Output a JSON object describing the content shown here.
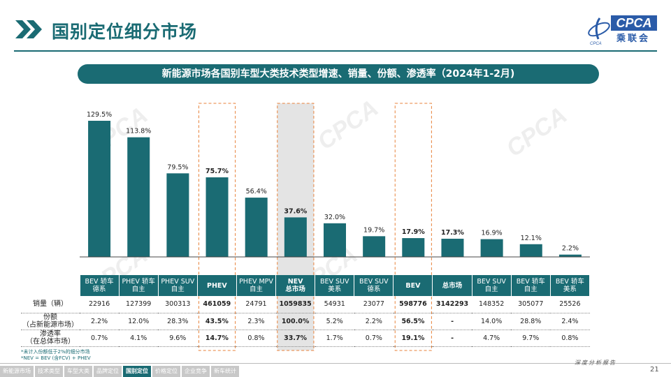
{
  "page_title": "国别定位细分市场",
  "logo": {
    "main": "CPCA",
    "cn": "乘联会",
    "sub": "CPCA"
  },
  "banner": "新能源市场各国别车型大类技术类型增速、销量、份额、渗透率（2024年1-2月)",
  "colors": {
    "teal": "#1a6b73",
    "highlight_box": "#e8823a",
    "highlight_fill": "#d9d9d9"
  },
  "chart_data": {
    "type": "bar",
    "categories": [
      "BEV 轿车 德系",
      "PHEV 轿车 自主",
      "PHEV SUV 自主",
      "PHEV",
      "PHEV MPV 自主",
      "NEV 总市场",
      "BEV SUV 美系",
      "BEV SUV 德系",
      "BEV",
      "总市场",
      "BEV SUV 自主",
      "BEV 轿车 自主",
      "BEV 轿车 美系"
    ],
    "series": [
      {
        "values": [
          129.5,
          113.8,
          79.5,
          75.7,
          56.4,
          37.6,
          32.0,
          19.7,
          17.9,
          17.3,
          16.9,
          12.1,
          2.2
        ]
      }
    ],
    "value_labels": [
      "129.5%",
      "113.8%",
      "79.5%",
      "75.7%",
      "56.4%",
      "37.6%",
      "32.0%",
      "19.7%",
      "17.9%",
      "17.3%",
      "16.9%",
      "12.1%",
      "2.2%"
    ],
    "bold_labels": [
      false,
      false,
      false,
      true,
      false,
      true,
      false,
      false,
      true,
      true,
      false,
      false,
      false
    ],
    "highlight_dashed": [
      3,
      8
    ],
    "highlight_gray": [
      5
    ],
    "ylim": [
      0,
      135
    ],
    "grid": false,
    "xlabel": "",
    "ylabel": ""
  },
  "table": {
    "headers": [
      {
        "l1": "BEV 轿车",
        "l2": "德系",
        "bold": false
      },
      {
        "l1": "PHEV 轿车",
        "l2": "自主",
        "bold": false
      },
      {
        "l1": "PHEV SUV",
        "l2": "自主",
        "bold": false
      },
      {
        "l1": "PHEV",
        "l2": "",
        "bold": true
      },
      {
        "l1": "PHEV MPV",
        "l2": "自主",
        "bold": false
      },
      {
        "l1": "NEV",
        "l2": "总市场",
        "bold": true
      },
      {
        "l1": "BEV SUV",
        "l2": "美系",
        "bold": false
      },
      {
        "l1": "BEV SUV",
        "l2": "德系",
        "bold": false
      },
      {
        "l1": "BEV",
        "l2": "",
        "bold": true
      },
      {
        "l1": "总市场",
        "l2": "",
        "bold": true
      },
      {
        "l1": "BEV SUV",
        "l2": "自主",
        "bold": false
      },
      {
        "l1": "BEV 轿车",
        "l2": "自主",
        "bold": false
      },
      {
        "l1": "BEV 轿车",
        "l2": "美系",
        "bold": false
      }
    ],
    "rows": [
      {
        "label1": "销量（辆）",
        "label2": "",
        "cells": [
          "22916",
          "127399",
          "300313",
          "461059",
          "24791",
          "1059835",
          "54931",
          "23077",
          "598776",
          "3142293",
          "148352",
          "305077",
          "25526"
        ]
      },
      {
        "label1": "份额",
        "label2": "（占新能源市场）",
        "cells": [
          "2.2%",
          "12.0%",
          "28.3%",
          "43.5%",
          "2.3%",
          "100.0%",
          "5.2%",
          "2.2%",
          "56.5%",
          "-",
          "14.0%",
          "28.8%",
          "2.4%"
        ]
      },
      {
        "label1": "渗透率",
        "label2": "（在总体市场）",
        "cells": [
          "0.7%",
          "4.1%",
          "9.6%",
          "14.7%",
          "0.8%",
          "33.7%",
          "1.7%",
          "0.7%",
          "19.1%",
          "-",
          "4.7%",
          "9.7%",
          "0.8%"
        ]
      }
    ],
    "bold_cols": [
      3,
      5,
      8,
      9
    ]
  },
  "notes": [
    "*未计入份额低于2%的细分市场",
    "*NEV = BEV (含FCV) + PHEV"
  ],
  "footer": {
    "tagline": "深度分析报告",
    "page": "21"
  },
  "nav": [
    {
      "label": "新能源市场",
      "active": false
    },
    {
      "label": "技术类型",
      "active": false
    },
    {
      "label": "车型大类",
      "active": false
    },
    {
      "label": "品牌定位",
      "active": false
    },
    {
      "label": "国别定位",
      "active": true
    },
    {
      "label": "价格定位",
      "active": false
    },
    {
      "label": "企业竞争",
      "active": false
    },
    {
      "label": "新车统计",
      "active": false
    }
  ]
}
